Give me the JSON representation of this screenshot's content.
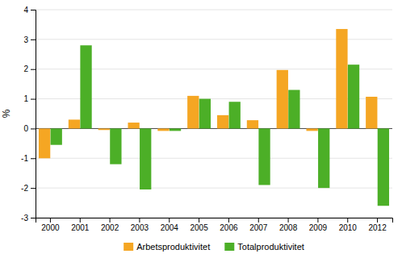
{
  "chart_data": {
    "type": "bar",
    "categories": [
      "2000",
      "2001",
      "2002",
      "2003",
      "2004",
      "2005",
      "2006",
      "2007",
      "2008",
      "2009",
      "2010",
      "2012"
    ],
    "series": [
      {
        "name": "Arbetsproduktivitet",
        "color": "#f5a623",
        "values": [
          -1.0,
          0.3,
          -0.05,
          0.2,
          -0.08,
          1.1,
          0.45,
          0.28,
          1.97,
          -0.08,
          3.35,
          1.07
        ]
      },
      {
        "name": "Totalproduktivitet",
        "color": "#4caf27",
        "values": [
          -0.55,
          2.8,
          -1.2,
          -2.05,
          -0.08,
          1.0,
          0.9,
          -1.9,
          1.3,
          -2.0,
          2.15,
          -2.6
        ]
      }
    ],
    "ylabel": "%",
    "ylim": [
      -3,
      4
    ],
    "yticks": [
      -3,
      -2,
      -1,
      0,
      1,
      2,
      3,
      4
    ],
    "grid": true,
    "legend": "bottom"
  }
}
